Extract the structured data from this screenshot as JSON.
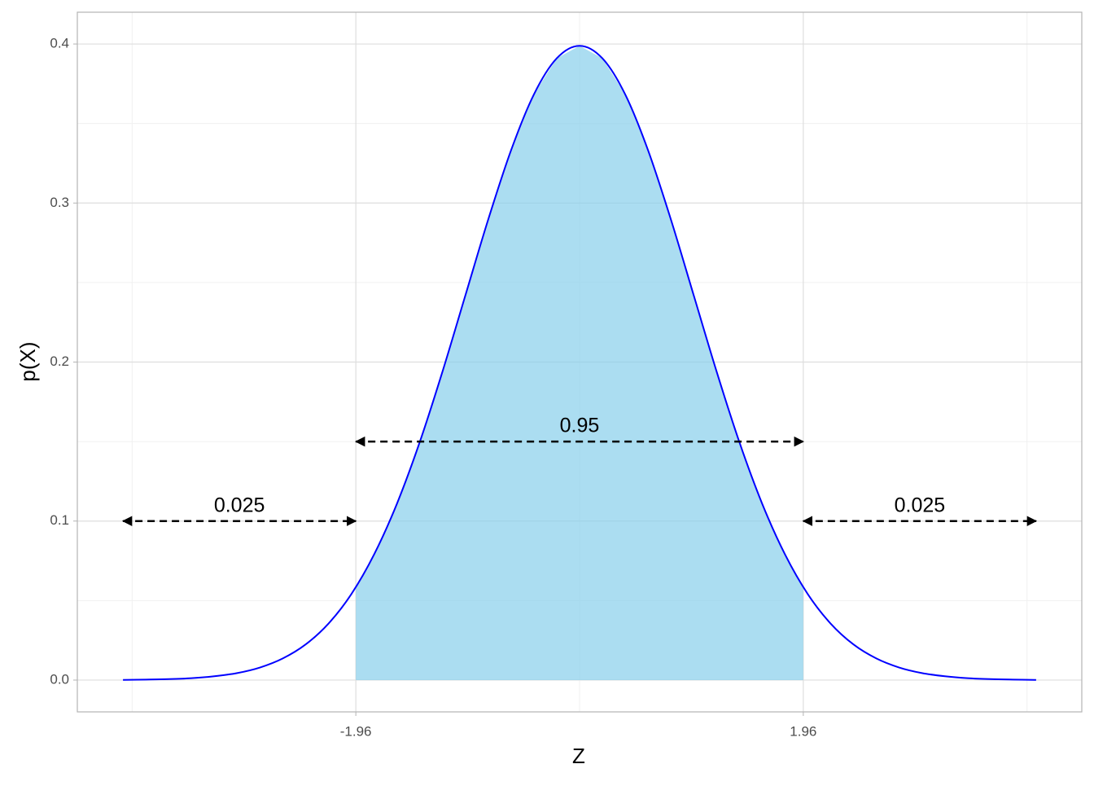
{
  "chart_data": {
    "type": "density",
    "x_label": "Z",
    "y_label": "p(X)",
    "x": [
      -4,
      -3.8,
      -3.6,
      -3.4,
      -3.2,
      -3,
      -2.8,
      -2.6,
      -2.4,
      -2.2,
      -2,
      -1.8,
      -1.6,
      -1.4,
      -1.2,
      -1,
      -0.8,
      -0.6,
      -0.4,
      -0.2,
      0,
      0.2,
      0.4,
      0.6,
      0.8,
      1,
      1.2,
      1.4,
      1.6,
      1.8,
      2,
      2.2,
      2.4,
      2.6,
      2.8,
      3,
      3.2,
      3.4,
      3.6,
      3.8,
      4
    ],
    "values": [
      0.0001,
      0.0003,
      0.0006,
      0.0012,
      0.0024,
      0.0044,
      0.0079,
      0.0136,
      0.0224,
      0.0355,
      0.054,
      0.079,
      0.1109,
      0.1497,
      0.1942,
      0.242,
      0.2897,
      0.3332,
      0.3683,
      0.391,
      0.3989,
      0.391,
      0.3683,
      0.3332,
      0.2897,
      0.242,
      0.1942,
      0.1497,
      0.1109,
      0.079,
      0.054,
      0.0355,
      0.0224,
      0.0136,
      0.0079,
      0.0044,
      0.0024,
      0.0012,
      0.0006,
      0.0003,
      0.0001
    ],
    "color": "#0000ff",
    "shade": {
      "from": -1.96,
      "to": 1.96,
      "color": "#87ceeb"
    },
    "annotations": [
      {
        "label": "0.025",
        "x0": -4,
        "x1": -1.96,
        "y": 0.1
      },
      {
        "label": "0.95",
        "x0": -1.96,
        "x1": 1.96,
        "y": 0.15
      },
      {
        "label": "0.025",
        "x0": 1.96,
        "x1": 4,
        "y": 0.1
      }
    ],
    "xlim": [
      -4.4,
      4.4
    ],
    "ylim": [
      -0.02,
      0.42
    ],
    "xticks": [
      -1.96,
      1.96
    ],
    "yticks": [
      {
        "value": 0,
        "label": "0.0"
      },
      0.1,
      0.2,
      0.3,
      0.4
    ],
    "x_minor_ticks": [
      -3.92,
      0,
      3.92
    ],
    "y_minor_ticks": [
      0.05,
      0.15,
      0.25,
      0.35
    ],
    "grid": true
  }
}
